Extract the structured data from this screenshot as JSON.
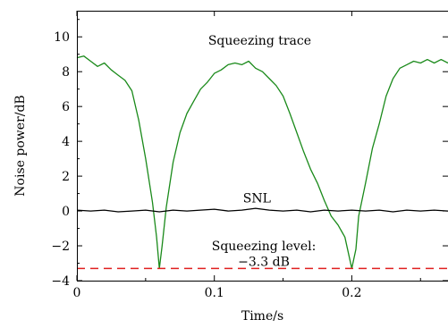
{
  "chart_data": {
    "type": "line",
    "xlabel": "Time/s",
    "ylabel": "Noise power/dB",
    "xlim": [
      0,
      0.27
    ],
    "ylim": [
      -4,
      11.5
    ],
    "xticks": [
      0,
      0.1,
      0.2
    ],
    "xtick_labels": [
      "0",
      "0.1",
      "0.2"
    ],
    "yticks": [
      -4,
      -2,
      0,
      2,
      4,
      6,
      8,
      10
    ],
    "ytick_labels": [
      "−4",
      "−2",
      "0",
      "2",
      "4",
      "6",
      "8",
      "10"
    ],
    "grid": false,
    "annotations": {
      "squeezing_trace": "Squeezing trace",
      "snl": "SNL",
      "squeezing_level_line1": "Squeezing level:",
      "squeezing_level_line2": "−3.3 dB"
    },
    "series": [
      {
        "color": "#1a8a1a",
        "style": "solid",
        "x": [
          0,
          0.005,
          0.01,
          0.015,
          0.02,
          0.025,
          0.03,
          0.035,
          0.04,
          0.045,
          0.05,
          0.055,
          0.058,
          0.06,
          0.062,
          0.065,
          0.07,
          0.075,
          0.08,
          0.085,
          0.09,
          0.095,
          0.1,
          0.105,
          0.11,
          0.115,
          0.12,
          0.125,
          0.13,
          0.135,
          0.14,
          0.145,
          0.15,
          0.155,
          0.16,
          0.165,
          0.17,
          0.175,
          0.18,
          0.185,
          0.19,
          0.195,
          0.2,
          0.203,
          0.205,
          0.21,
          0.215,
          0.22,
          0.225,
          0.23,
          0.235,
          0.24,
          0.245,
          0.25,
          0.255,
          0.26,
          0.265,
          0.27
        ],
        "y": [
          8.8,
          8.9,
          8.6,
          8.3,
          8.5,
          8.1,
          7.8,
          7.5,
          6.9,
          5.2,
          3.0,
          0.5,
          -1.5,
          -3.3,
          -2.0,
          0.2,
          2.8,
          4.5,
          5.6,
          6.3,
          7.0,
          7.4,
          7.9,
          8.1,
          8.4,
          8.5,
          8.4,
          8.6,
          8.2,
          8.0,
          7.6,
          7.2,
          6.6,
          5.6,
          4.5,
          3.4,
          2.4,
          1.6,
          0.6,
          -0.3,
          -0.8,
          -1.5,
          -3.3,
          -2.2,
          -0.3,
          1.6,
          3.6,
          5.0,
          6.6,
          7.6,
          8.2,
          8.4,
          8.6,
          8.5,
          8.7,
          8.5,
          8.7,
          8.5
        ]
      },
      {
        "name": "SNL",
        "color": "#000000",
        "style": "solid",
        "x": [
          0,
          0.01,
          0.02,
          0.03,
          0.04,
          0.05,
          0.06,
          0.07,
          0.08,
          0.09,
          0.1,
          0.11,
          0.12,
          0.13,
          0.14,
          0.15,
          0.16,
          0.17,
          0.18,
          0.19,
          0.2,
          0.21,
          0.22,
          0.23,
          0.24,
          0.25,
          0.26,
          0.27
        ],
        "y": [
          0.05,
          0.0,
          0.05,
          -0.05,
          0.0,
          0.05,
          -0.05,
          0.05,
          0.0,
          0.05,
          0.1,
          0.0,
          0.05,
          0.15,
          0.05,
          0.0,
          0.05,
          -0.05,
          0.05,
          0.0,
          0.05,
          0.0,
          0.05,
          -0.05,
          0.05,
          0.0,
          0.05,
          0.0
        ]
      },
      {
        "name": "Squeezing level",
        "color": "#e02020",
        "style": "dashed",
        "x": [
          0,
          0.27
        ],
        "y": [
          -3.3,
          -3.3
        ]
      }
    ]
  }
}
